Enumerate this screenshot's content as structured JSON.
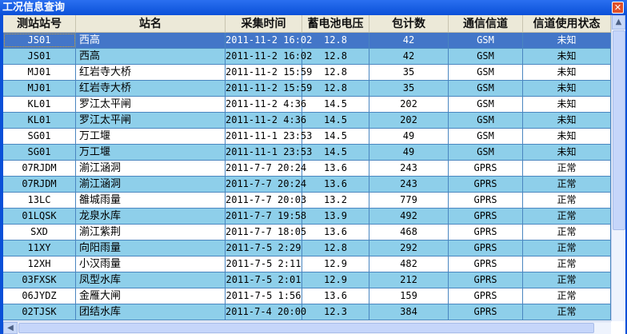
{
  "window": {
    "title": "工况信息查询",
    "close_icon": "close-icon"
  },
  "columns": [
    "测站站号",
    "站名",
    "采集时间",
    "蓄电池电压",
    "包计数",
    "通信信道",
    "信道使用状态"
  ],
  "rows": [
    [
      "JS01",
      "西高",
      "2011-11-2 16:02",
      "12.8",
      "42",
      "GSM",
      "未知"
    ],
    [
      "JS01",
      "西高",
      "2011-11-2 16:02",
      "12.8",
      "42",
      "GSM",
      "未知"
    ],
    [
      "MJ01",
      "红岩寺大桥",
      "2011-11-2 15:59",
      "12.8",
      "35",
      "GSM",
      "未知"
    ],
    [
      "MJ01",
      "红岩寺大桥",
      "2011-11-2 15:59",
      "12.8",
      "35",
      "GSM",
      "未知"
    ],
    [
      "KL01",
      "罗江太平闸",
      "2011-11-2 4:36",
      "14.5",
      "202",
      "GSM",
      "未知"
    ],
    [
      "KL01",
      "罗江太平闸",
      "2011-11-2 4:36",
      "14.5",
      "202",
      "GSM",
      "未知"
    ],
    [
      "SG01",
      "万工堰",
      "2011-11-1 23:53",
      "14.5",
      "49",
      "GSM",
      "未知"
    ],
    [
      "SG01",
      "万工堰",
      "2011-11-1 23:53",
      "14.5",
      "49",
      "GSM",
      "未知"
    ],
    [
      "07RJDM",
      "湔江涵洞",
      "2011-7-7 20:24",
      "13.6",
      "243",
      "GPRS",
      "正常"
    ],
    [
      "07RJDM",
      "湔江涵洞",
      "2011-7-7 20:24",
      "13.6",
      "243",
      "GPRS",
      "正常"
    ],
    [
      "13LC",
      "雒城雨量",
      "2011-7-7 20:03",
      "13.2",
      "779",
      "GPRS",
      "正常"
    ],
    [
      "01LQSK",
      "龙泉水库",
      "2011-7-7 19:58",
      "13.9",
      "492",
      "GPRS",
      "正常"
    ],
    [
      "SXD",
      "湔江紫荆",
      "2011-7-7 18:05",
      "13.6",
      "468",
      "GPRS",
      "正常"
    ],
    [
      "11XY",
      "向阳雨量",
      "2011-7-5 2:29",
      "12.8",
      "292",
      "GPRS",
      "正常"
    ],
    [
      "12XH",
      "小汉雨量",
      "2011-7-5 2:11",
      "12.9",
      "482",
      "GPRS",
      "正常"
    ],
    [
      "03FXSK",
      "凤型水库",
      "2011-7-5 2:01",
      "12.9",
      "212",
      "GPRS",
      "正常"
    ],
    [
      "06JYDZ",
      "金雁大闸",
      "2011-7-5 1:56",
      "13.6",
      "159",
      "GPRS",
      "正常"
    ],
    [
      "02TJSK",
      "团结水库",
      "2011-7-4 20:00",
      "12.3",
      "384",
      "GPRS",
      "正常"
    ]
  ],
  "selected_row": 0,
  "colors": {
    "title_bar": "#0a50d8",
    "row_alt": "#8ecfea",
    "row_selected": "#4376c8",
    "header": "#ece9d8"
  }
}
